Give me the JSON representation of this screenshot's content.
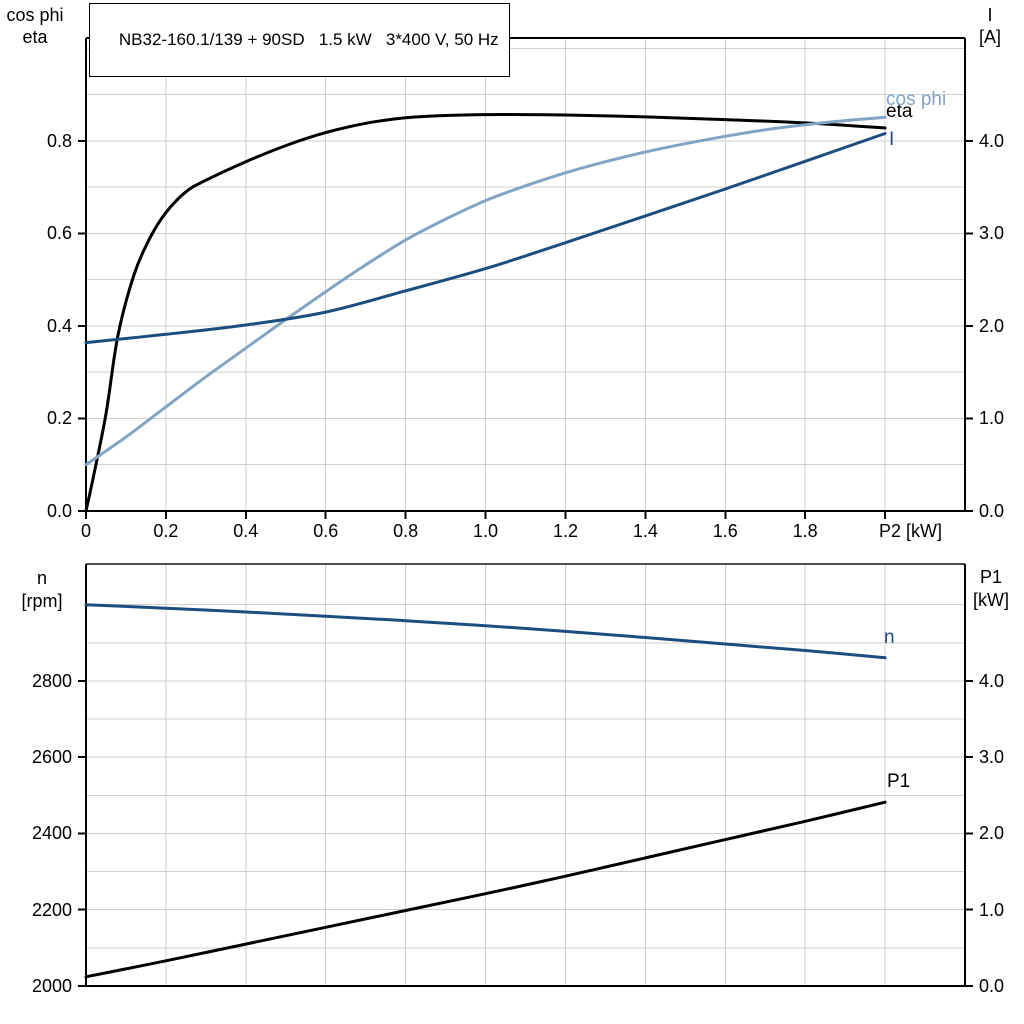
{
  "title": "NB32-160.1/139 + 90SD   1.5 kW   3*400 V, 50 Hz",
  "colors": {
    "black": "#000000",
    "dark_blue": "#1b4e7e",
    "light_blue": "#82a5c6",
    "grid": "#cfcfcf",
    "axis": "#000000",
    "frame_top_bottom_chart": "#4d4d4d"
  },
  "top_chart": {
    "left_axis_title_line1": "cos phi",
    "left_axis_title_line2": "eta",
    "right_axis_title_line1": "I",
    "right_axis_title_line2": "[A]"
  },
  "bottom_chart": {
    "left_axis_title_line1": "n",
    "left_axis_title_line2": "[rpm]",
    "right_axis_title_line1": "P1",
    "right_axis_title_line2": "[kW]"
  },
  "chart_data": [
    {
      "type": "line",
      "title": "NB32-160.1/139 + 90SD  1.5 kW  3*400 V, 50 Hz",
      "x_axis": {
        "label": "P2 [kW]",
        "range": [
          0,
          2.2
        ],
        "tick_step": 0.2,
        "labeled_ticks": [
          0,
          0.2,
          0.4,
          0.6,
          0.8,
          1.0,
          1.2,
          1.4,
          1.6,
          1.8
        ],
        "labeled_tick_labels": [
          "0",
          "0.2",
          "0.4",
          "0.6",
          "0.8",
          "1.0",
          "1.2",
          "1.4",
          "1.6",
          "1.8"
        ]
      },
      "left_axis": {
        "label": "cos phi / eta",
        "range": [
          0,
          1.0225
        ],
        "ticks": [
          0,
          0.2,
          0.4,
          0.6,
          0.8
        ],
        "tick_labels": [
          "0.0",
          "0.2",
          "0.4",
          "0.6",
          "0.8"
        ],
        "minor_grid_step": 0.1
      },
      "right_axis": {
        "label": "I [A]",
        "range": [
          0,
          5.1125
        ],
        "ticks": [
          0,
          1,
          2,
          3,
          4
        ],
        "tick_labels": [
          "0.0",
          "1.0",
          "2.0",
          "3.0",
          "4.0"
        ]
      },
      "grid": true,
      "legend_position": "end-of-curve",
      "series": [
        {
          "name": "eta",
          "axis": "left",
          "color": "black",
          "x": [
            0,
            0.02,
            0.05,
            0.08,
            0.12,
            0.16,
            0.2,
            0.25,
            0.3,
            0.4,
            0.5,
            0.6,
            0.7,
            0.8,
            0.9,
            1.0,
            1.1,
            1.2,
            1.4,
            1.6,
            1.8,
            2.0
          ],
          "y": [
            0,
            0.08,
            0.21,
            0.38,
            0.51,
            0.59,
            0.645,
            0.69,
            0.715,
            0.755,
            0.79,
            0.818,
            0.838,
            0.85,
            0.855,
            0.857,
            0.857,
            0.856,
            0.852,
            0.846,
            0.839,
            0.828
          ]
        },
        {
          "name": "cos phi",
          "axis": "left",
          "color": "light_blue",
          "x": [
            0,
            0.1,
            0.2,
            0.3,
            0.4,
            0.5,
            0.6,
            0.7,
            0.8,
            0.9,
            1.0,
            1.1,
            1.2,
            1.3,
            1.4,
            1.5,
            1.6,
            1.7,
            1.8,
            1.9,
            2.0
          ],
          "y": [
            0.1,
            0.16,
            0.225,
            0.29,
            0.352,
            0.414,
            0.474,
            0.532,
            0.586,
            0.631,
            0.671,
            0.703,
            0.731,
            0.755,
            0.776,
            0.794,
            0.81,
            0.824,
            0.835,
            0.844,
            0.851
          ]
        },
        {
          "name": "I",
          "axis": "right",
          "color": "dark_blue",
          "x": [
            0,
            0.2,
            0.4,
            0.6,
            0.8,
            1.0,
            1.2,
            1.4,
            1.6,
            1.8,
            2.0
          ],
          "y": [
            1.82,
            1.91,
            2.01,
            2.15,
            2.38,
            2.62,
            2.9,
            3.19,
            3.48,
            3.78,
            4.08
          ]
        }
      ]
    },
    {
      "type": "line",
      "title": "",
      "x_axis": {
        "label": "",
        "range": [
          0,
          2.2
        ],
        "tick_step": 0.2,
        "labeled_ticks": [],
        "labeled_tick_labels": []
      },
      "left_axis": {
        "label": "n [rpm]",
        "range": [
          2000,
          3106.8
        ],
        "ticks": [
          2000,
          2200,
          2400,
          2600,
          2800
        ],
        "tick_labels": [
          "2000",
          "2200",
          "2400",
          "2600",
          "2800"
        ],
        "minor_grid_step": 100
      },
      "right_axis": {
        "label": "P1 [kW]",
        "range": [
          0,
          5.534
        ],
        "ticks": [
          0,
          1,
          2,
          3,
          4
        ],
        "tick_labels": [
          "0.0",
          "1.0",
          "2.0",
          "3.0",
          "4.0"
        ]
      },
      "grid": true,
      "legend_position": "end-of-curve",
      "series": [
        {
          "name": "n",
          "axis": "left",
          "color": "dark_blue",
          "x": [
            0,
            0.2,
            0.4,
            0.6,
            0.8,
            1.0,
            1.2,
            1.4,
            1.6,
            1.8,
            2.0
          ],
          "y": [
            3000,
            2991,
            2981,
            2970,
            2958,
            2945,
            2930,
            2914,
            2897,
            2880,
            2861
          ]
        },
        {
          "name": "P1",
          "axis": "right",
          "color": "black",
          "x": [
            0,
            0.2,
            0.4,
            0.6,
            0.8,
            1.0,
            1.2,
            1.4,
            1.6,
            1.8,
            2.0
          ],
          "y": [
            0.12,
            0.33,
            0.55,
            0.77,
            0.99,
            1.21,
            1.44,
            1.68,
            1.92,
            2.16,
            2.41
          ]
        }
      ]
    }
  ]
}
